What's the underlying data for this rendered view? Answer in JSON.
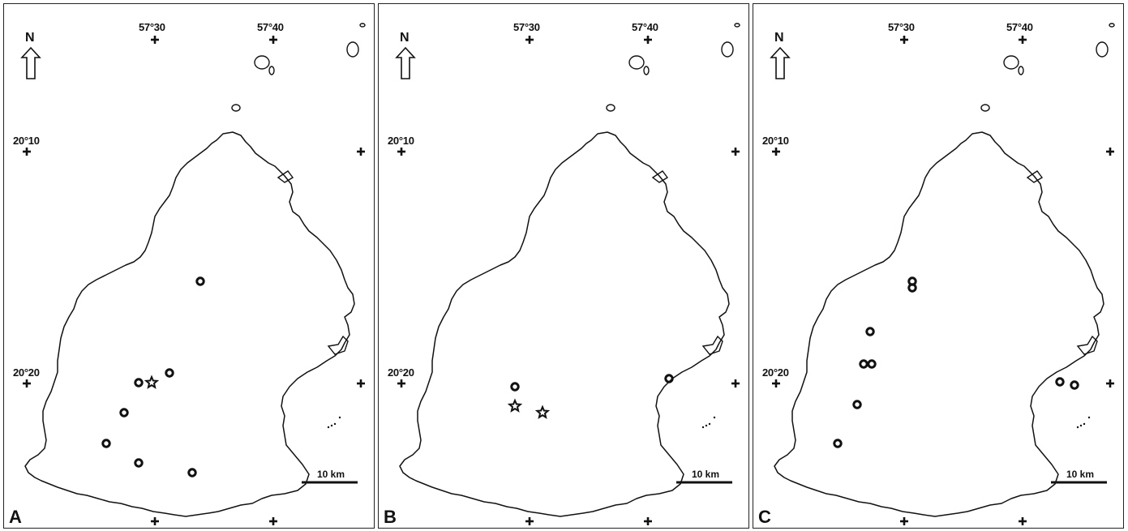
{
  "north_label": "N",
  "scale_label": "10 km",
  "longitude_labels": [
    "57°30",
    "57°40"
  ],
  "latitude_labels": [
    "20°10",
    "20°20"
  ],
  "marker_legend_types": [
    "circle",
    "star"
  ],
  "panels": [
    {
      "id": "A",
      "label": "A",
      "records": [
        {
          "type": "circle"
        },
        {
          "type": "circle"
        },
        {
          "type": "circle"
        },
        {
          "type": "star"
        },
        {
          "type": "circle"
        },
        {
          "type": "circle"
        },
        {
          "type": "circle"
        },
        {
          "type": "circle"
        }
      ]
    },
    {
      "id": "B",
      "label": "B",
      "records": [
        {
          "type": "circle"
        },
        {
          "type": "star"
        },
        {
          "type": "star"
        },
        {
          "type": "circle"
        }
      ]
    },
    {
      "id": "C",
      "label": "C",
      "records": [
        {
          "type": "circle"
        },
        {
          "type": "circle"
        },
        {
          "type": "circle"
        },
        {
          "type": "circle"
        },
        {
          "type": "circle"
        },
        {
          "type": "circle"
        },
        {
          "type": "circle"
        },
        {
          "type": "circle"
        },
        {
          "type": "circle"
        }
      ]
    }
  ]
}
